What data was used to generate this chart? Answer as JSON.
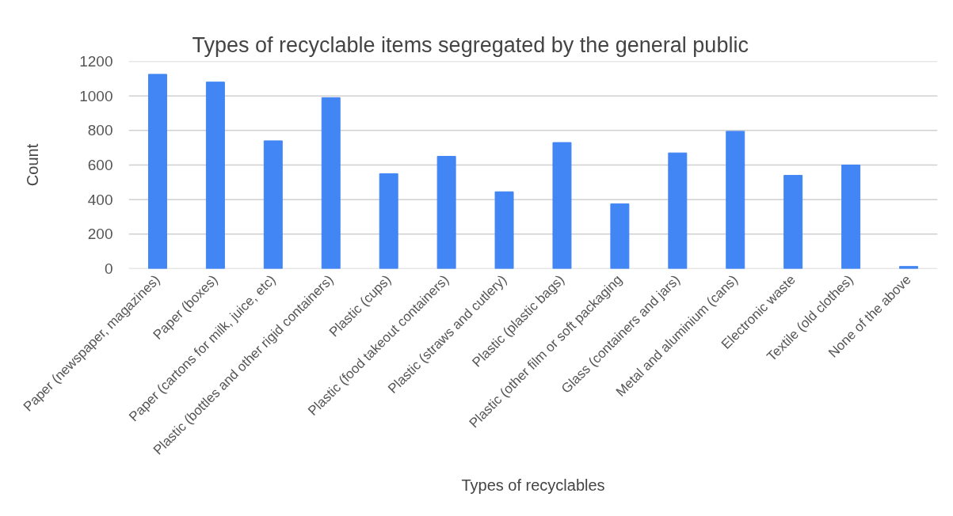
{
  "chart_data": {
    "type": "bar",
    "title": "Types of recyclable items segregated by the general public",
    "xlabel": "Types of recyclables",
    "ylabel": "Count",
    "categories": [
      "Paper (newspaper, magazines)",
      "Paper (boxes)",
      "Paper (cartons for milk, juice, etc)",
      "Plastic (bottles and other rigid containers)",
      "Plastic (cups)",
      "Plastic (food takeout containers)",
      "Plastic (straws and cutlery)",
      "Plastic (plastic bags)",
      "Plastic (other film or soft packaging",
      "Glass (containers and jars)",
      "Metal and aluminium (cans)",
      "Electronic waste",
      "Textile (old clothes)",
      "None of the above"
    ],
    "values": [
      1125,
      1080,
      740,
      990,
      550,
      650,
      445,
      730,
      375,
      670,
      795,
      540,
      600,
      13
    ],
    "color": "#4285f4",
    "ylim": [
      0,
      1200
    ],
    "yticks": [
      0,
      200,
      400,
      600,
      800,
      1000,
      1200
    ],
    "grid": "y"
  }
}
